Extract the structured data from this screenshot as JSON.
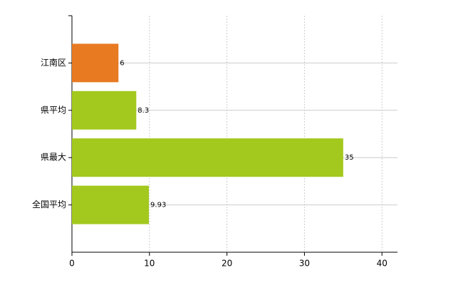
{
  "chart_data": {
    "type": "barh",
    "categories": [
      "江南区",
      "県平均",
      "県最大",
      "全国平均"
    ],
    "values": [
      6,
      8.3,
      35,
      9.93
    ],
    "colors": [
      "#e87a22",
      "#a3c91e",
      "#a3c91e",
      "#a3c91e"
    ],
    "xlim": [
      0,
      42
    ],
    "xticks": [
      0,
      10,
      20,
      30,
      40
    ],
    "grid": true
  }
}
